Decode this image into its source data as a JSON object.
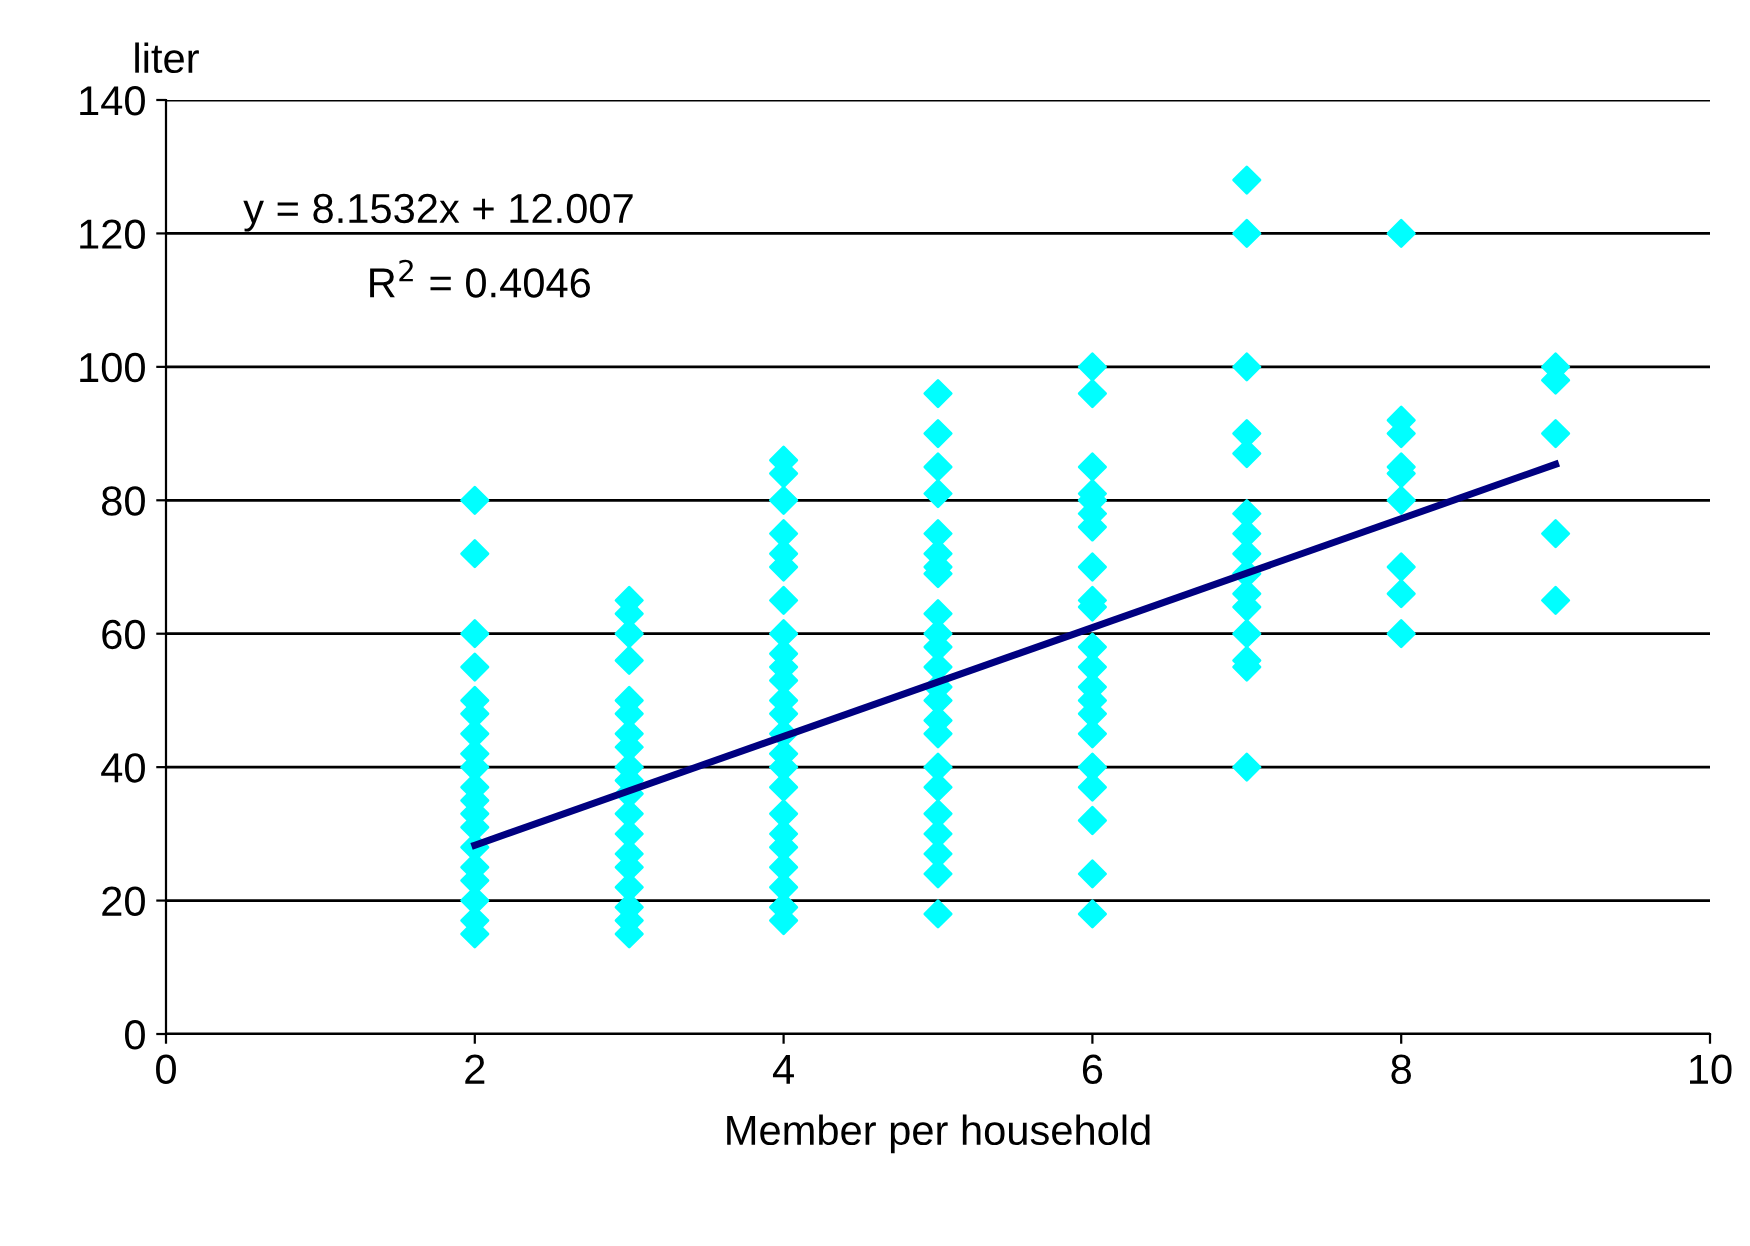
{
  "chart_data": {
    "type": "scatter",
    "xlabel": "Member per household",
    "ylabel": "liter",
    "annotations": [
      "y = 8.1532x + 12.007",
      "R$^{2}$ = 0.4046"
    ],
    "series": [
      {
        "color": "#00ffff",
        "marker": "diamond",
        "x": [
          2,
          2,
          2,
          2,
          2,
          2,
          2,
          2,
          2,
          2,
          2,
          2,
          2,
          2,
          2,
          2,
          2,
          2,
          2,
          3,
          3,
          3,
          3,
          3,
          3,
          3,
          3,
          3,
          3,
          3,
          3,
          3,
          3,
          3,
          3,
          3,
          3,
          3,
          4,
          4,
          4,
          4,
          4,
          4,
          4,
          4,
          4,
          4,
          4,
          4,
          4,
          4,
          4,
          4,
          4,
          4,
          4,
          4,
          4,
          4,
          4,
          4,
          5,
          5,
          5,
          5,
          5,
          5,
          5,
          5,
          5,
          5,
          5,
          5,
          5,
          5,
          5,
          5,
          5,
          5,
          5,
          5,
          5,
          5,
          5,
          6,
          6,
          6,
          6,
          6,
          6,
          6,
          6,
          6,
          6,
          6,
          6,
          6,
          6,
          6,
          6,
          6,
          6,
          6,
          6,
          6,
          7,
          7,
          7,
          7,
          7,
          7,
          7,
          7,
          7,
          7,
          7,
          7,
          7,
          7,
          7,
          8,
          8,
          8,
          8,
          8,
          8,
          8,
          8,
          8,
          9,
          9,
          9,
          9,
          9
        ],
        "values": [
          80,
          72,
          60,
          55,
          50,
          48,
          45,
          42,
          40,
          37,
          35,
          33,
          31,
          28,
          25,
          23,
          20,
          17,
          15,
          65,
          63,
          60,
          56,
          50,
          48,
          45,
          43,
          40,
          38,
          36,
          33,
          30,
          27,
          25,
          22,
          19,
          17,
          15,
          86,
          84,
          80,
          75,
          72,
          70,
          65,
          60,
          57,
          55,
          53,
          50,
          48,
          45,
          42,
          40,
          37,
          33,
          30,
          28,
          25,
          22,
          19,
          17,
          96,
          90,
          85,
          81,
          75,
          72,
          70,
          69,
          63,
          60,
          58,
          55,
          52,
          50,
          47,
          45,
          40,
          37,
          33,
          30,
          27,
          24,
          18,
          100,
          96,
          85,
          81,
          80,
          78,
          76,
          70,
          65,
          64,
          58,
          55,
          52,
          50,
          48,
          45,
          40,
          37,
          32,
          24,
          18,
          128,
          120,
          100,
          90,
          87,
          78,
          75,
          72,
          69,
          66,
          64,
          60,
          56,
          55,
          40,
          120,
          92,
          90,
          85,
          84,
          80,
          70,
          66,
          60,
          100,
          98,
          90,
          75,
          65
        ]
      },
      {
        "type": "line",
        "color": "#000080",
        "line_style": "solid",
        "x": [
          2,
          9
        ],
        "values": [
          28.3,
          85.4
        ]
      }
    ],
    "xlim": [
      0,
      10
    ],
    "xticks": [
      0,
      2,
      4,
      6,
      8,
      10
    ],
    "ylim": [
      0,
      140
    ],
    "yticks": [
      0,
      20,
      40,
      60,
      80,
      100,
      120,
      140
    ],
    "grid": "y",
    "legend": false
  }
}
